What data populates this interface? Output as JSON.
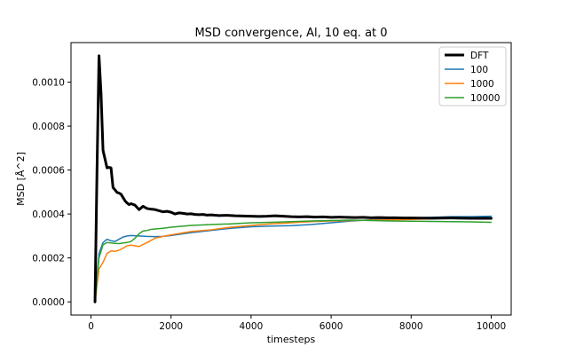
{
  "chart_data": {
    "type": "line",
    "title": "MSD convergence, Al, 10 eq. at 0",
    "xlabel": "timesteps",
    "ylabel": "MSD [Å^2]",
    "xlim": [
      -500,
      10500
    ],
    "ylim": [
      -6e-05,
      0.00118
    ],
    "xticks": [
      0,
      2000,
      4000,
      6000,
      8000,
      10000
    ],
    "xtick_labels": [
      "0",
      "2000",
      "4000",
      "6000",
      "8000",
      "10000"
    ],
    "yticks": [
      0.0,
      0.0002,
      0.0004,
      0.0006,
      0.0008,
      0.001
    ],
    "ytick_labels": [
      "0.0000",
      "0.0002",
      "0.0004",
      "0.0006",
      "0.0008",
      "0.0010"
    ],
    "grid": false,
    "legend_position": "top-right",
    "series": [
      {
        "name": "DFT",
        "color": "#000000",
        "x": [
          100,
          150,
          200,
          250,
          300,
          350,
          400,
          450,
          500,
          550,
          600,
          650,
          700,
          750,
          800,
          850,
          900,
          950,
          1000,
          1100,
          1200,
          1300,
          1400,
          1500,
          1600,
          1700,
          1800,
          1900,
          2000,
          2100,
          2200,
          2300,
          2400,
          2500,
          2600,
          2700,
          2800,
          2900,
          3000,
          3200,
          3400,
          3600,
          3800,
          4000,
          4200,
          4400,
          4600,
          4800,
          5000,
          5200,
          5400,
          5600,
          5800,
          6000,
          6200,
          6400,
          6600,
          6800,
          7000,
          7200,
          7400,
          7600,
          7800,
          8000,
          8500,
          9000,
          9500,
          10000
        ],
        "y": [
          0.0,
          0.0006,
          0.00112,
          0.00095,
          0.00069,
          0.00065,
          0.00061,
          0.000612,
          0.00061,
          0.00052,
          0.00051,
          0.000498,
          0.000495,
          0.00049,
          0.000475,
          0.00046,
          0.00045,
          0.000443,
          0.000447,
          0.00044,
          0.00042,
          0.000435,
          0.000425,
          0.000422,
          0.00042,
          0.000415,
          0.00041,
          0.000412,
          0.000408,
          0.0004,
          0.000405,
          0.000403,
          0.0004,
          0.000401,
          0.000398,
          0.000397,
          0.000398,
          0.000395,
          0.000396,
          0.000393,
          0.000394,
          0.000392,
          0.000391,
          0.00039,
          0.000389,
          0.00039,
          0.000392,
          0.00039,
          0.000388,
          0.000387,
          0.000388,
          0.000386,
          0.000387,
          0.000385,
          0.000386,
          0.000385,
          0.000384,
          0.000385,
          0.000383,
          0.000384,
          0.000383,
          0.000383,
          0.000382,
          0.000382,
          0.000381,
          0.000382,
          0.00038,
          0.00038
        ]
      },
      {
        "name": "100",
        "color": "#1f77b4",
        "x": [
          100,
          200,
          300,
          400,
          500,
          600,
          700,
          800,
          900,
          1000,
          1200,
          1400,
          1600,
          1800,
          2000,
          2500,
          3000,
          3500,
          4000,
          4500,
          5000,
          5500,
          6000,
          6500,
          7000,
          7500,
          8000,
          8500,
          9000,
          9500,
          10000
        ],
        "y": [
          0.0,
          0.00022,
          0.00027,
          0.000285,
          0.000278,
          0.000275,
          0.000285,
          0.000295,
          0.0003,
          0.000302,
          0.0003,
          0.000298,
          0.000297,
          0.000298,
          0.000302,
          0.000315,
          0.000325,
          0.000335,
          0.000342,
          0.000345,
          0.000347,
          0.000352,
          0.00036,
          0.000368,
          0.000373,
          0.000378,
          0.000382,
          0.000385,
          0.000388,
          0.000388,
          0.00039
        ]
      },
      {
        "name": "1000",
        "color": "#ff7f0e",
        "x": [
          100,
          200,
          300,
          400,
          500,
          600,
          700,
          800,
          900,
          1000,
          1100,
          1200,
          1400,
          1600,
          1800,
          2000,
          2500,
          3000,
          3500,
          4000,
          4500,
          5000,
          5500,
          6000,
          6500,
          7000,
          7500,
          8000,
          8500,
          9000,
          9500,
          10000
        ],
        "y": [
          0.0,
          0.00015,
          0.00018,
          0.00022,
          0.000232,
          0.00023,
          0.000235,
          0.000245,
          0.000255,
          0.000258,
          0.000255,
          0.000252,
          0.00027,
          0.00029,
          0.000298,
          0.000305,
          0.00032,
          0.000328,
          0.00034,
          0.000348,
          0.000355,
          0.00036,
          0.000365,
          0.000368,
          0.00037,
          0.000372,
          0.000373,
          0.000375,
          0.000378,
          0.00038,
          0.000378,
          0.000377
        ]
      },
      {
        "name": "10000",
        "color": "#2ca02c",
        "x": [
          100,
          200,
          300,
          400,
          500,
          600,
          700,
          800,
          900,
          1000,
          1100,
          1200,
          1300,
          1400,
          1500,
          1600,
          1800,
          2000,
          2500,
          3000,
          3500,
          4000,
          4500,
          5000,
          5500,
          6000,
          6500,
          7000,
          7500,
          8000,
          8500,
          9000,
          9500,
          10000
        ],
        "y": [
          0.0,
          0.0002,
          0.00026,
          0.00027,
          0.000268,
          0.000266,
          0.000265,
          0.000268,
          0.00027,
          0.000275,
          0.00029,
          0.00031,
          0.000322,
          0.000325,
          0.00033,
          0.000332,
          0.000335,
          0.00034,
          0.000348,
          0.000352,
          0.000355,
          0.00036,
          0.000362,
          0.000365,
          0.000368,
          0.00037,
          0.000372,
          0.00037,
          0.000368,
          0.000367,
          0.000366,
          0.000365,
          0.000364,
          0.000362
        ]
      }
    ]
  }
}
